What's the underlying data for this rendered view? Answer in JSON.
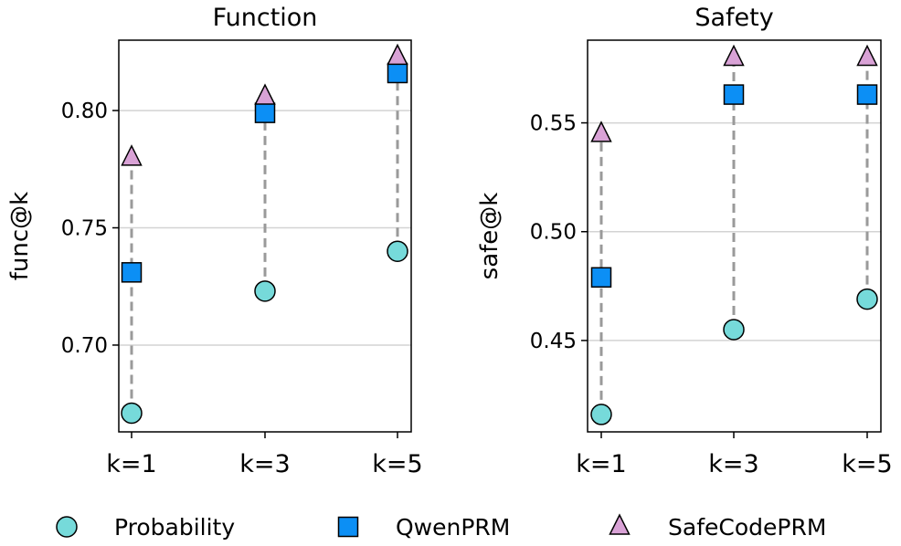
{
  "chart_data": [
    {
      "type": "scatter",
      "title": "Function",
      "ylabel": "func@k",
      "xlabel": "",
      "categories": [
        "k=1",
        "k=3",
        "k=5"
      ],
      "ylim": [
        0.663,
        0.83
      ],
      "yticks": [
        0.7,
        0.75,
        0.8
      ],
      "ytick_labels": [
        "0.70",
        "0.75",
        "0.80"
      ],
      "grid": "horizontal",
      "series": [
        {
          "name": "Probability",
          "values": [
            0.671,
            0.723,
            0.74
          ]
        },
        {
          "name": "QwenPRM",
          "values": [
            0.731,
            0.799,
            0.816
          ]
        },
        {
          "name": "SafeCodePRM",
          "values": [
            0.78,
            0.806,
            0.823
          ]
        }
      ]
    },
    {
      "type": "scatter",
      "title": "Safety",
      "ylabel": "safe@k",
      "xlabel": "",
      "categories": [
        "k=1",
        "k=3",
        "k=5"
      ],
      "ylim": [
        0.408,
        0.588
      ],
      "yticks": [
        0.45,
        0.5,
        0.55
      ],
      "ytick_labels": [
        "0.45",
        "0.50",
        "0.55"
      ],
      "grid": "horizontal",
      "series": [
        {
          "name": "Probability",
          "values": [
            0.416,
            0.455,
            0.469
          ]
        },
        {
          "name": "QwenPRM",
          "values": [
            0.479,
            0.563,
            0.563
          ]
        },
        {
          "name": "SafeCodePRM",
          "values": [
            0.545,
            0.58,
            0.58
          ]
        }
      ]
    }
  ],
  "legend": {
    "position": "bottom",
    "items": [
      {
        "label": "Probability",
        "marker": "circle",
        "color": "#76dada"
      },
      {
        "label": "QwenPRM",
        "marker": "square",
        "color": "#0c8ff5"
      },
      {
        "label": "SafeCodePRM",
        "marker": "triangle",
        "color": "#d9a2d6"
      }
    ]
  },
  "colors": {
    "connector": "#9a9a9a",
    "grid": "#d3d3d3",
    "edge": "#000000"
  }
}
